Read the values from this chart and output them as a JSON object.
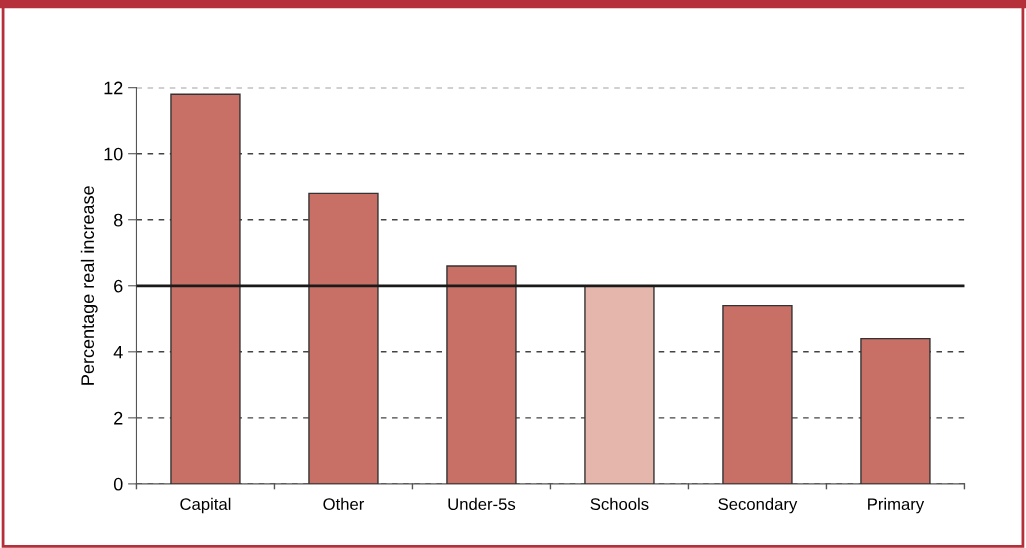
{
  "chart_data": {
    "type": "bar",
    "ylabel": "Percentage real increase",
    "categories": [
      "Capital",
      "Other",
      "Under-5s",
      "Schools",
      "Secondary",
      "Primary"
    ],
    "values": [
      11.8,
      8.8,
      6.6,
      6.0,
      5.4,
      4.4
    ],
    "colors": [
      "#c97066",
      "#c97066",
      "#c97066",
      "#e5b6ab",
      "#c97066",
      "#c97066"
    ],
    "ylim": [
      0,
      12
    ],
    "yticks": [
      0,
      2,
      4,
      6,
      8,
      10,
      12
    ],
    "grid": "y",
    "ref_lines": [
      {
        "axis": "y",
        "value": 6,
        "color": "#1a1a1a",
        "line_style": "solid"
      }
    ]
  }
}
